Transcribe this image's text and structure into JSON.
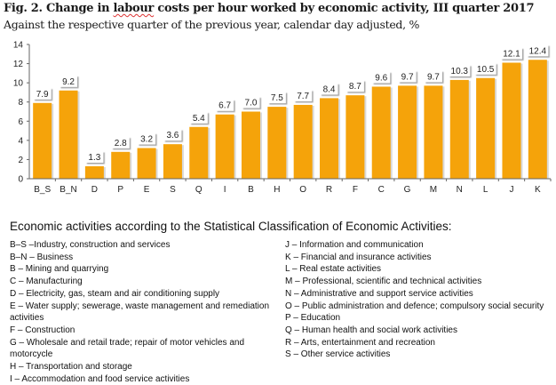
{
  "title_prefix": "Fig. 2. Change in ",
  "title_squiggle": "labour",
  "title_suffix": " costs per hour worked by economic activity, III quarter 2017",
  "subtitle": "Against the respective quarter of the previous year, calendar day adjusted, %",
  "chart_data": {
    "type": "bar",
    "title": "Fig. 2. Change in labour costs per hour worked by economic activity, III quarter 2017",
    "subtitle": "Against the respective quarter of the previous year, calendar day adjusted, %",
    "xlabel": "",
    "ylabel": "",
    "categories": [
      "B_S",
      "B_N",
      "D",
      "P",
      "E",
      "S",
      "Q",
      "I",
      "B",
      "H",
      "O",
      "R",
      "F",
      "C",
      "G",
      "M",
      "N",
      "L",
      "J",
      "K"
    ],
    "values": [
      7.9,
      9.2,
      1.3,
      2.8,
      3.2,
      3.6,
      5.4,
      6.7,
      7.0,
      7.5,
      7.7,
      8.4,
      8.7,
      9.6,
      9.7,
      9.7,
      10.3,
      10.5,
      12.1,
      12.4
    ],
    "value_labels": [
      "7.9",
      "9.2",
      "1.3",
      "2.8",
      "3.2",
      "3.6",
      "5.4",
      "6.7",
      "7.0",
      "7.5",
      "7.7",
      "8.4",
      "8.7",
      "9.6",
      "9.7",
      "9.7",
      "10.3",
      "10.5",
      "12.1",
      "12.4"
    ],
    "ylim": [
      0,
      14
    ],
    "yticks": [
      0,
      2,
      4,
      6,
      8,
      10,
      12,
      14
    ],
    "grid": false,
    "legend": "none",
    "bar_color": "#F5A30A"
  },
  "legend": {
    "title": "Economic activities according to the Statistical Classification of Economic Activities:",
    "left": [
      "B–S –Industry, construction and services",
      "B–N – Business",
      "B – Mining and quarrying",
      "C – Manufacturing",
      "D – Electricity, gas, steam and air conditioning supply",
      "E – Water supply; sewerage, waste management and remediation activities",
      "F – Construction",
      "G – Wholesale and retail trade; repair of motor vehicles and motorcycle",
      "H – Transportation and storage",
      "I – Accommodation and food service activities"
    ],
    "right": [
      "J – Information and communication",
      "K – Financial and insurance activities",
      "L – Real estate activities",
      "M – Professional, scientific and technical activities",
      "N – Administrative and support service activities",
      "O – Public administration and defence; compulsory social security",
      "P – Education",
      "Q – Human health and social work activities",
      "R – Arts, entertainment and recreation",
      "S – Other service activities"
    ]
  }
}
